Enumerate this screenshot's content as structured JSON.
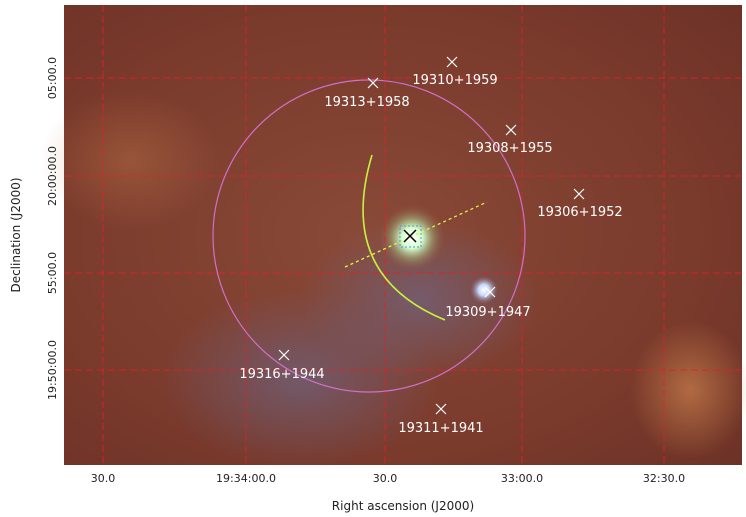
{
  "axes": {
    "x_label": "Right ascension (J2000)",
    "y_label": "Declination (J2000)",
    "x_ticks": [
      "30.0",
      "19:34:00.0",
      "30.0",
      "33:00.0",
      "32:30.0"
    ],
    "y_ticks": [
      "05:00.0",
      "20:00:00.0",
      "55:00.0",
      "19:50:00.0"
    ]
  },
  "sources": [
    {
      "label": "19310+1959"
    },
    {
      "label": "19313+1958"
    },
    {
      "label": "19308+1955"
    },
    {
      "label": "19306+1952"
    },
    {
      "label": "19309+1947"
    },
    {
      "label": "19316+1944"
    },
    {
      "label": "19311+1941"
    }
  ]
}
